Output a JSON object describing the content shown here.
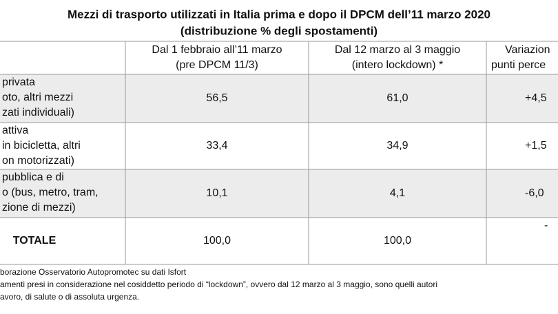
{
  "title": [
    "Mezzi di trasporto utilizzati in Italia prima e dopo il DPCM dell’11 marzo 2020",
    "(distribuzione % degli spostamenti)"
  ],
  "table": {
    "header": [
      [],
      [
        "Dal 1 febbraio all’11 marzo",
        "(pre DPCM 11/3)"
      ],
      [
        "Dal 12 marzo al 3 maggio",
        "(intero lockdown) *"
      ],
      [
        "Variazion",
        "punti perce"
      ]
    ],
    "rows": [
      [
        [
          "privata",
          "oto, altri mezzi",
          "zati individuali)"
        ],
        "56,5",
        "61,0",
        "+4,5"
      ],
      [
        [
          "attiva",
          "in bicicletta, altri",
          "on motorizzati)"
        ],
        "33,4",
        "34,9",
        "+1,5"
      ],
      [
        [
          "pubblica e di",
          "o (bus, metro, tram,",
          "zione di mezzi)"
        ],
        "10,1",
        "4,1",
        "-6,0"
      ],
      [
        [
          "TOTALE"
        ],
        "100,0",
        "100,0",
        "-"
      ]
    ]
  },
  "footnotes": [
    "borazione Osservatorio Autopromotec su dati Isfort",
    "amenti presi in considerazione nel cosiddetto periodo di “lockdown”, ovvero dal 12 marzo al 3 maggio, sono quelli autori",
    "avoro, di salute o di assoluta urgenza."
  ]
}
